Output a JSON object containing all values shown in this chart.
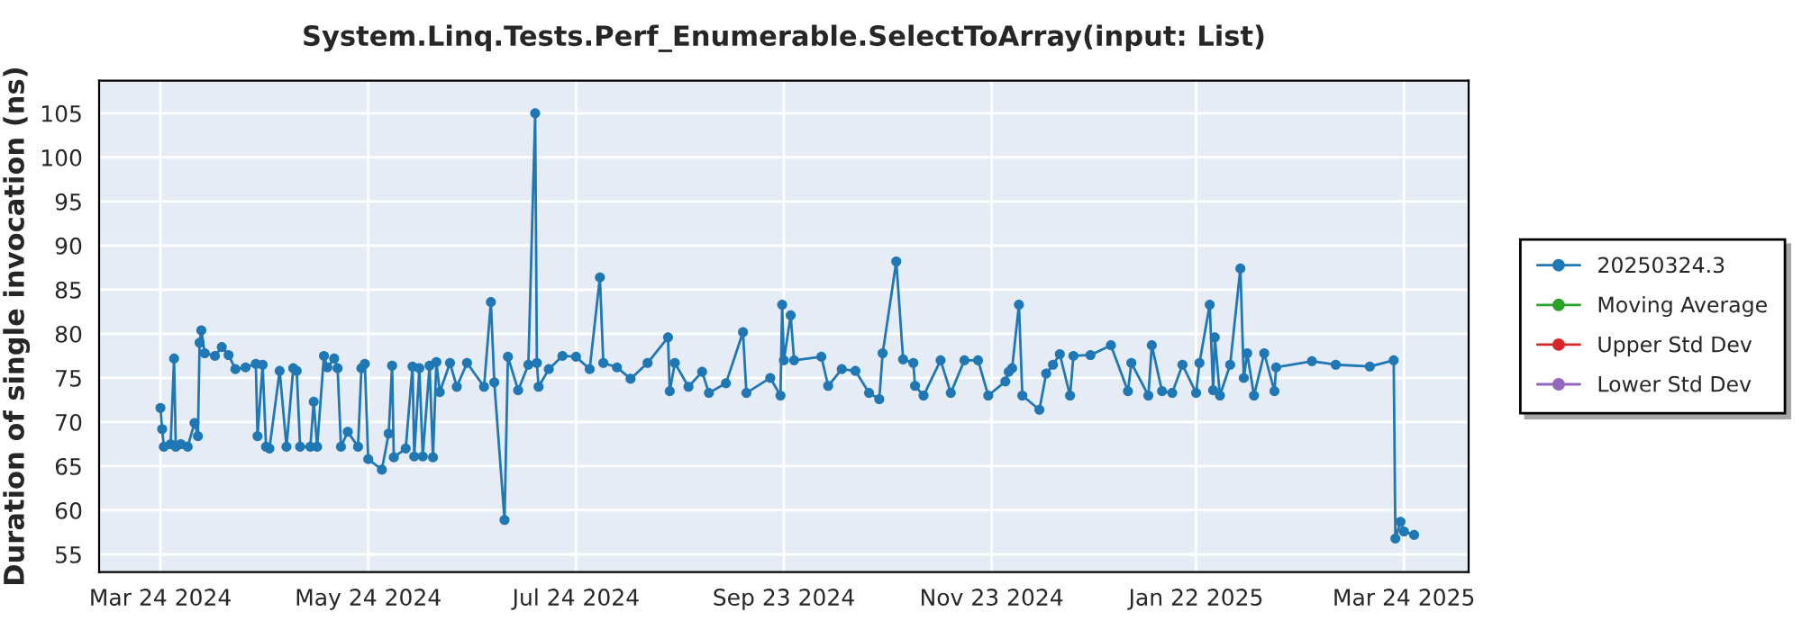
{
  "chart_data": {
    "type": "line",
    "title": "System.Linq.Tests.Perf_Enumerable.SelectToArray(input: List)",
    "ylabel": "Duration of single invocation (ns)",
    "xlim": [
      "2024-03-06",
      "2025-04-12"
    ],
    "ylim": [
      53,
      108.7
    ],
    "xticks": [
      {
        "value": "2024-03-24",
        "label": "Mar 24 2024"
      },
      {
        "value": "2024-05-24",
        "label": "May 24 2024"
      },
      {
        "value": "2024-07-24",
        "label": "Jul 24 2024"
      },
      {
        "value": "2024-09-23",
        "label": "Sep 23 2024"
      },
      {
        "value": "2024-11-23",
        "label": "Nov 23 2024"
      },
      {
        "value": "2025-01-22",
        "label": "Jan 22 2025"
      },
      {
        "value": "2025-03-24",
        "label": "Mar 24 2025"
      }
    ],
    "yticks": [
      55,
      60,
      65,
      70,
      75,
      80,
      85,
      90,
      95,
      100,
      105
    ],
    "grid": true,
    "legend": "right",
    "marker": "circle",
    "line_style": "solid",
    "x": [
      "2024-03-24",
      "2024-03-24T12:00",
      "2024-03-25",
      "2024-03-27",
      "2024-03-28",
      "2024-03-28T12:00",
      "2024-03-30",
      "2024-04-01",
      "2024-04-03",
      "2024-04-04",
      "2024-04-04T12:00",
      "2024-04-05",
      "2024-04-06",
      "2024-04-09",
      "2024-04-11",
      "2024-04-13",
      "2024-04-15",
      "2024-04-18",
      "2024-04-21",
      "2024-04-21T12:00",
      "2024-04-23",
      "2024-04-24",
      "2024-04-25",
      "2024-04-28",
      "2024-04-30",
      "2024-05-02",
      "2024-05-03",
      "2024-05-04",
      "2024-05-07",
      "2024-05-08",
      "2024-05-09",
      "2024-05-11",
      "2024-05-12",
      "2024-05-14",
      "2024-05-15",
      "2024-05-16",
      "2024-05-18",
      "2024-05-21",
      "2024-05-22",
      "2024-05-23",
      "2024-05-24",
      "2024-05-28",
      "2024-05-30",
      "2024-05-31",
      "2024-05-31T12:00",
      "2024-06-04",
      "2024-06-06",
      "2024-06-06T12:00",
      "2024-06-08",
      "2024-06-09",
      "2024-06-11",
      "2024-06-12",
      "2024-06-13",
      "2024-06-14",
      "2024-06-17",
      "2024-06-19",
      "2024-06-22",
      "2024-06-27",
      "2024-06-29",
      "2024-06-30",
      "2024-07-03",
      "2024-07-04",
      "2024-07-07",
      "2024-07-10",
      "2024-07-12",
      "2024-07-12T12:00",
      "2024-07-13",
      "2024-07-16",
      "2024-07-20",
      "2024-07-24",
      "2024-07-28",
      "2024-07-31",
      "2024-08-01",
      "2024-08-05",
      "2024-08-09",
      "2024-08-14",
      "2024-08-20",
      "2024-08-20T12:00",
      "2024-08-22",
      "2024-08-26",
      "2024-08-30",
      "2024-09-01",
      "2024-09-06",
      "2024-09-11",
      "2024-09-12",
      "2024-09-19",
      "2024-09-22",
      "2024-09-22T12:00",
      "2024-09-23",
      "2024-09-25",
      "2024-09-26",
      "2024-10-04",
      "2024-10-06",
      "2024-10-10",
      "2024-10-14",
      "2024-10-18",
      "2024-10-21",
      "2024-10-22",
      "2024-10-26",
      "2024-10-28",
      "2024-10-31",
      "2024-10-31T12:00",
      "2024-11-03",
      "2024-11-08",
      "2024-11-11",
      "2024-11-15",
      "2024-11-19",
      "2024-11-22",
      "2024-11-27",
      "2024-11-28",
      "2024-11-29",
      "2024-12-01",
      "2024-12-02",
      "2024-12-07",
      "2024-12-09",
      "2024-12-11",
      "2024-12-13",
      "2024-12-16",
      "2024-12-17",
      "2024-12-22",
      "2024-12-28",
      "2025-01-02",
      "2025-01-03",
      "2025-01-08",
      "2025-01-09",
      "2025-01-12",
      "2025-01-15",
      "2025-01-18",
      "2025-01-22",
      "2025-01-23",
      "2025-01-26",
      "2025-01-27",
      "2025-01-27T12:00",
      "2025-01-29",
      "2025-02-01",
      "2025-02-04",
      "2025-02-05",
      "2025-02-06",
      "2025-02-08",
      "2025-02-11",
      "2025-02-14",
      "2025-02-14T12:00",
      "2025-02-25",
      "2025-03-04",
      "2025-03-14",
      "2025-03-21",
      "2025-03-21T12:00",
      "2025-03-23",
      "2025-03-24",
      "2025-03-27"
    ],
    "series": [
      {
        "name": "20250324.3",
        "color": "#1f77b4",
        "values": [
          71.6,
          69.2,
          67.2,
          67.5,
          77.2,
          67.2,
          67.5,
          67.2,
          69.9,
          68.4,
          79.0,
          80.4,
          77.8,
          77.5,
          78.5,
          77.6,
          76.0,
          76.2,
          76.6,
          68.4,
          76.5,
          67.2,
          67.0,
          75.8,
          67.2,
          76.1,
          75.8,
          67.2,
          67.2,
          72.3,
          67.2,
          77.5,
          76.2,
          77.2,
          76.1,
          67.2,
          68.9,
          67.2,
          76.1,
          76.6,
          65.8,
          64.6,
          68.7,
          76.4,
          66.0,
          67.0,
          76.3,
          66.1,
          76.1,
          66.1,
          76.4,
          66.0,
          76.8,
          73.4,
          76.7,
          74.0,
          76.7,
          74.0,
          83.6,
          74.5,
          58.9,
          77.4,
          73.6,
          76.5,
          105.0,
          76.7,
          74.0,
          76.0,
          77.5,
          77.4,
          76.0,
          86.4,
          76.7,
          76.2,
          74.9,
          76.7,
          79.6,
          73.5,
          76.7,
          74.0,
          75.7,
          73.3,
          74.4,
          80.2,
          73.3,
          75.0,
          73.0,
          83.3,
          77.0,
          82.1,
          77.0,
          77.4,
          74.1,
          76.0,
          75.8,
          73.3,
          72.6,
          77.8,
          88.2,
          77.1,
          76.7,
          74.1,
          73.0,
          77.0,
          73.3,
          77.0,
          77.0,
          73.0,
          74.6,
          75.7,
          76.1,
          83.3,
          73.0,
          71.4,
          75.5,
          76.5,
          77.7,
          73.0,
          77.5,
          77.6,
          78.7,
          73.5,
          76.7,
          73.0,
          78.7,
          73.5,
          73.3,
          76.5,
          73.3,
          76.7,
          83.3,
          73.6,
          79.6,
          73.0,
          76.5,
          87.4,
          75.0,
          77.8,
          73.0,
          77.8,
          73.5,
          76.2,
          76.9,
          76.5,
          76.3,
          77.0,
          56.8,
          58.7,
          57.6,
          57.2
        ]
      },
      {
        "name": "Moving Average",
        "color": "#2ca02c",
        "values": [
          null,
          null,
          null,
          null,
          null,
          null,
          null,
          null,
          null,
          null,
          null,
          null,
          null,
          null,
          null,
          null,
          null,
          null,
          null,
          null,
          null,
          null,
          null,
          null,
          null,
          null,
          null,
          null,
          null,
          null,
          null,
          null,
          null,
          null,
          null,
          null,
          null,
          null,
          null,
          null,
          null,
          null,
          null,
          null,
          null,
          null,
          null,
          null,
          null,
          null,
          null,
          null,
          null,
          null,
          null,
          null,
          null,
          null,
          null,
          null,
          null,
          null,
          null,
          null,
          null,
          null,
          null,
          null,
          null,
          null,
          null,
          null,
          null,
          null,
          null,
          null,
          null,
          null,
          null,
          null,
          null,
          null,
          null,
          null,
          null,
          null,
          null,
          null,
          null,
          null,
          null,
          null,
          null,
          null,
          null,
          null,
          null,
          null,
          null,
          null,
          null,
          null,
          null,
          null,
          null,
          null,
          null,
          null,
          null,
          null,
          null,
          null,
          null,
          null,
          null,
          null,
          null,
          null,
          null,
          null,
          null,
          null,
          null,
          null,
          null,
          null,
          null,
          null,
          null,
          null,
          null,
          null,
          null,
          null,
          null,
          null,
          null,
          null,
          null,
          null,
          null,
          null,
          null,
          null,
          null,
          null,
          null,
          null,
          null,
          null
        ]
      },
      {
        "name": "Upper Std Dev",
        "color": "#d62728",
        "values": [
          null,
          null,
          null,
          null,
          null,
          null,
          null,
          null,
          null,
          null,
          null,
          null,
          null,
          null,
          null,
          null,
          null,
          null,
          null,
          null,
          null,
          null,
          null,
          null,
          null,
          null,
          null,
          null,
          null,
          null,
          null,
          null,
          null,
          null,
          null,
          null,
          null,
          null,
          null,
          null,
          null,
          null,
          null,
          null,
          null,
          null,
          null,
          null,
          null,
          null,
          null,
          null,
          null,
          null,
          null,
          null,
          null,
          null,
          null,
          null,
          null,
          null,
          null,
          null,
          null,
          null,
          null,
          null,
          null,
          null,
          null,
          null,
          null,
          null,
          null,
          null,
          null,
          null,
          null,
          null,
          null,
          null,
          null,
          null,
          null,
          null,
          null,
          null,
          null,
          null,
          null,
          null,
          null,
          null,
          null,
          null,
          null,
          null,
          null,
          null,
          null,
          null,
          null,
          null,
          null,
          null,
          null,
          null,
          null,
          null,
          null,
          null,
          null,
          null,
          null,
          null,
          null,
          null,
          null,
          null,
          null,
          null,
          null,
          null,
          null,
          null,
          null,
          null,
          null,
          null,
          null,
          null,
          null,
          null,
          null,
          null,
          null,
          null,
          null,
          null,
          null,
          null,
          null,
          null,
          null,
          null,
          null,
          null,
          null,
          null
        ]
      },
      {
        "name": "Lower Std Dev",
        "color": "#9467bd",
        "values": [
          null,
          null,
          null,
          null,
          null,
          null,
          null,
          null,
          null,
          null,
          null,
          null,
          null,
          null,
          null,
          null,
          null,
          null,
          null,
          null,
          null,
          null,
          null,
          null,
          null,
          null,
          null,
          null,
          null,
          null,
          null,
          null,
          null,
          null,
          null,
          null,
          null,
          null,
          null,
          null,
          null,
          null,
          null,
          null,
          null,
          null,
          null,
          null,
          null,
          null,
          null,
          null,
          null,
          null,
          null,
          null,
          null,
          null,
          null,
          null,
          null,
          null,
          null,
          null,
          null,
          null,
          null,
          null,
          null,
          null,
          null,
          null,
          null,
          null,
          null,
          null,
          null,
          null,
          null,
          null,
          null,
          null,
          null,
          null,
          null,
          null,
          null,
          null,
          null,
          null,
          null,
          null,
          null,
          null,
          null,
          null,
          null,
          null,
          null,
          null,
          null,
          null,
          null,
          null,
          null,
          null,
          null,
          null,
          null,
          null,
          null,
          null,
          null,
          null,
          null,
          null,
          null,
          null,
          null,
          null,
          null,
          null,
          null,
          null,
          null,
          null,
          null,
          null,
          null,
          null,
          null,
          null,
          null,
          null,
          null,
          null,
          null,
          null,
          null,
          null,
          null,
          null,
          null,
          null,
          null,
          null,
          null,
          null,
          null,
          null
        ]
      }
    ]
  }
}
